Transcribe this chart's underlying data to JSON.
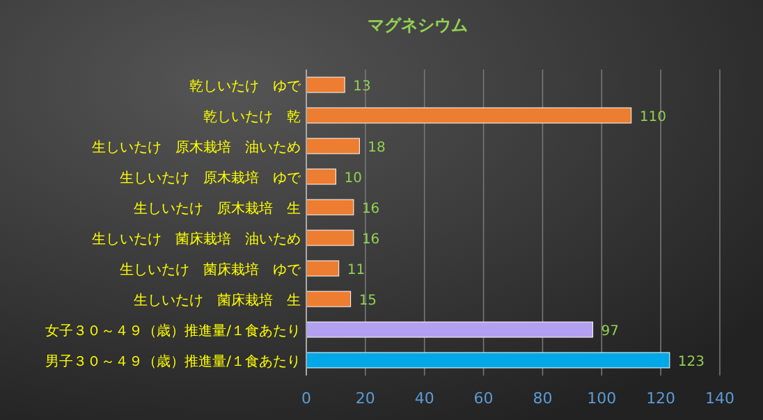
{
  "chart_data": {
    "type": "bar",
    "orientation": "horizontal",
    "title": "マグネシウム",
    "categories": [
      "乾しいたけ　ゆで",
      "乾しいたけ　乾",
      "生しいたけ　原木栽培　油いため",
      "生しいたけ　原木栽培　ゆで",
      "生しいたけ　原木栽培　生",
      "生しいたけ　菌床栽培　油いため",
      "生しいたけ　菌床栽培　ゆで",
      "生しいたけ　菌床栽培　生",
      "女子３０～４９（歳）推進量/１食あたり",
      "男子３０～４９（歳）推進量/１食あたり"
    ],
    "values": [
      13,
      110,
      18,
      10,
      16,
      16,
      11,
      15,
      97,
      123
    ],
    "colors": [
      "#ed7d31",
      "#ed7d31",
      "#ed7d31",
      "#ed7d31",
      "#ed7d31",
      "#ed7d31",
      "#ed7d31",
      "#ed7d31",
      "#b4a0f0",
      "#00a8e8"
    ],
    "xlim": [
      0,
      140
    ],
    "xticks": [
      0,
      20,
      40,
      60,
      80,
      100,
      120,
      140
    ],
    "grid": "x",
    "data_labels": true
  }
}
